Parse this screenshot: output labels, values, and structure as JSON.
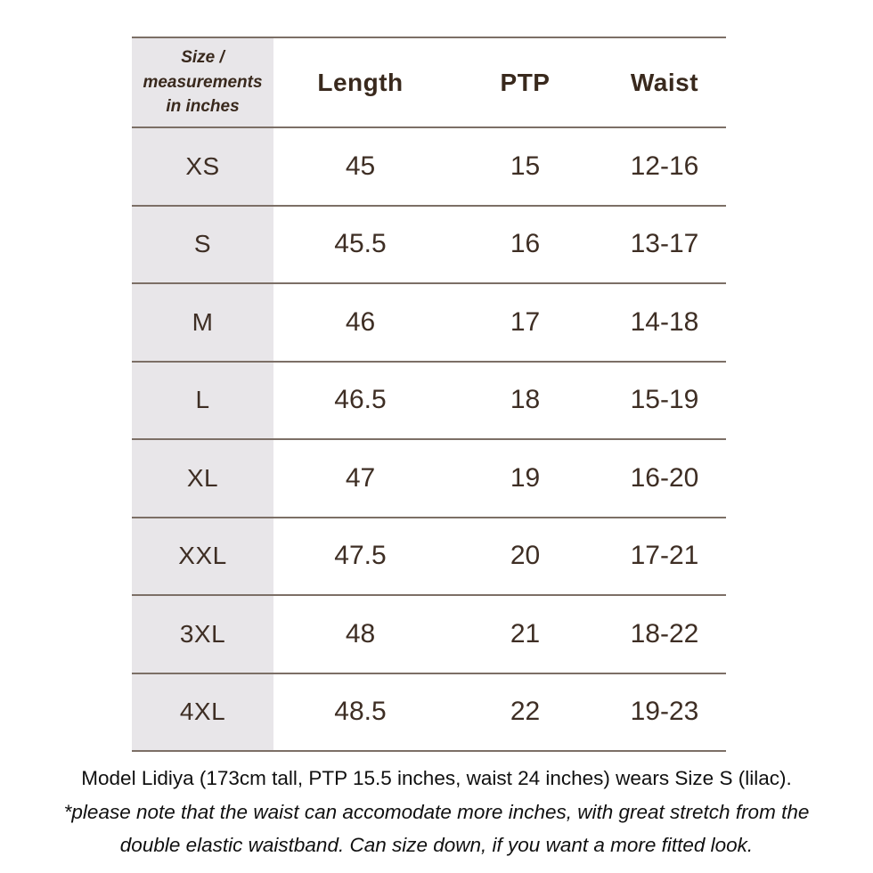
{
  "colors": {
    "border": "#7c6f66",
    "table_text": "#3e2e24",
    "header_text": "#39291d",
    "first_column_background": "#e8e6e9",
    "note_text": "#101010"
  },
  "table": {
    "corner": [
      "Size /",
      "measurements",
      "in inches"
    ],
    "columns": [
      "Length",
      "PTP",
      "Waist"
    ],
    "rows": [
      {
        "size": "XS",
        "length": "45",
        "ptp": "15",
        "waist": "12-16"
      },
      {
        "size": "S",
        "length": "45.5",
        "ptp": "16",
        "waist": "13-17"
      },
      {
        "size": "M",
        "length": "46",
        "ptp": "17",
        "waist": "14-18"
      },
      {
        "size": "L",
        "length": "46.5",
        "ptp": "18",
        "waist": "15-19"
      },
      {
        "size": "XL",
        "length": "47",
        "ptp": "19",
        "waist": "16-20"
      },
      {
        "size": "XXL",
        "length": "47.5",
        "ptp": "20",
        "waist": "17-21"
      },
      {
        "size": "3XL",
        "length": "48",
        "ptp": "21",
        "waist": "18-22"
      },
      {
        "size": "4XL",
        "length": "48.5",
        "ptp": "22",
        "waist": "19-23"
      }
    ]
  },
  "notes": {
    "model_line": "Model Lidiya (173cm tall, PTP 15.5 inches, waist 24 inches) wears Size S (lilac).",
    "disclaimer_line1": "*please note that the waist can accomodate more inches, with great stretch from the",
    "disclaimer_line2": "double elastic waistband. Can size down, if you want a more fitted look."
  }
}
